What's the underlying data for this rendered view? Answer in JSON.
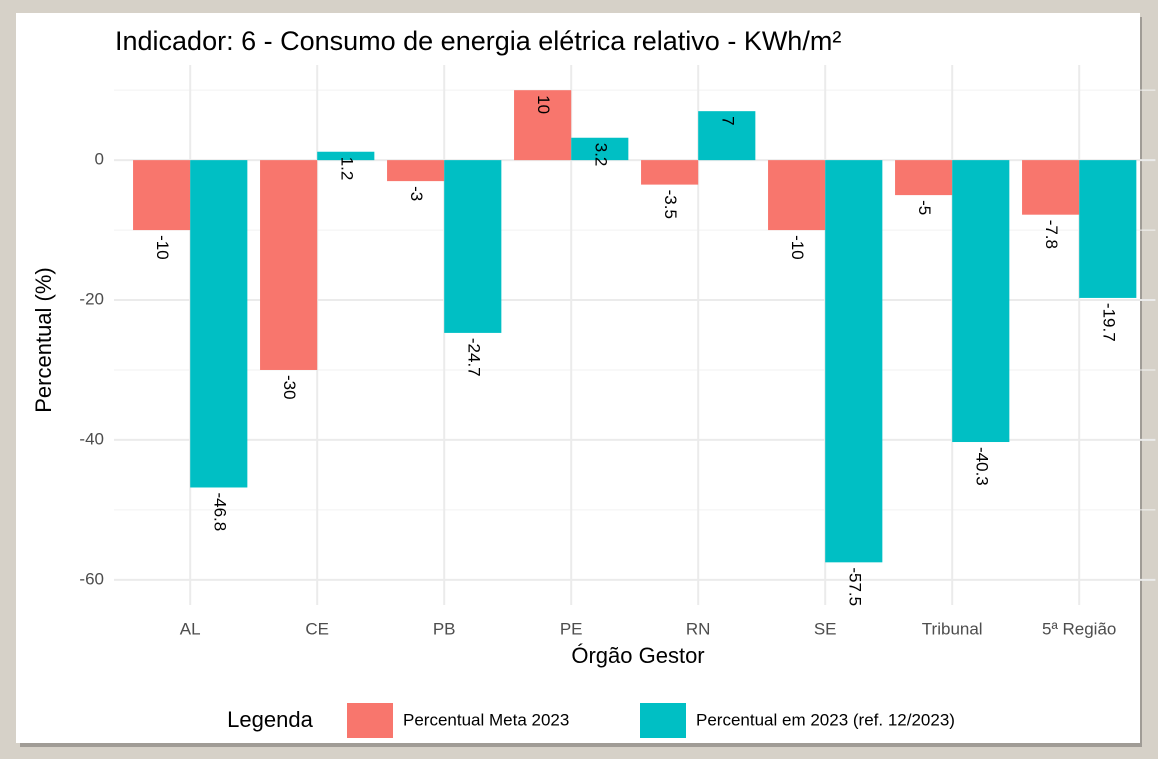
{
  "chart_data": {
    "type": "bar",
    "title": "Indicador: 6 - Consumo de energia elétrica relativo - KWh/m²",
    "x_label": "Órgão Gestor",
    "y_label": "Percentual (%)",
    "legend_title": "Legenda",
    "categories": [
      "AL",
      "CE",
      "PB",
      "PE",
      "RN",
      "SE",
      "Tribunal",
      "5ª Região"
    ],
    "series": [
      {
        "name": "Percentual Meta 2023",
        "color": "#f8766d",
        "values": [
          -10,
          -30,
          -3,
          10,
          -3.5,
          -10,
          -5,
          -7.8
        ]
      },
      {
        "name": "Percentual em 2023 (ref. 12/2023)",
        "color": "#00bfc4",
        "values": [
          -46.8,
          1.2,
          -24.7,
          3.2,
          7,
          -57.5,
          -40.3,
          -19.7
        ]
      }
    ],
    "ylim": [
      -63.6,
      13.6
    ],
    "yticks": [
      -60,
      -40,
      -20,
      0
    ],
    "minor_yticks": [
      -50,
      -30,
      -10,
      10
    ],
    "grid": true,
    "legend_position": "bottom"
  }
}
